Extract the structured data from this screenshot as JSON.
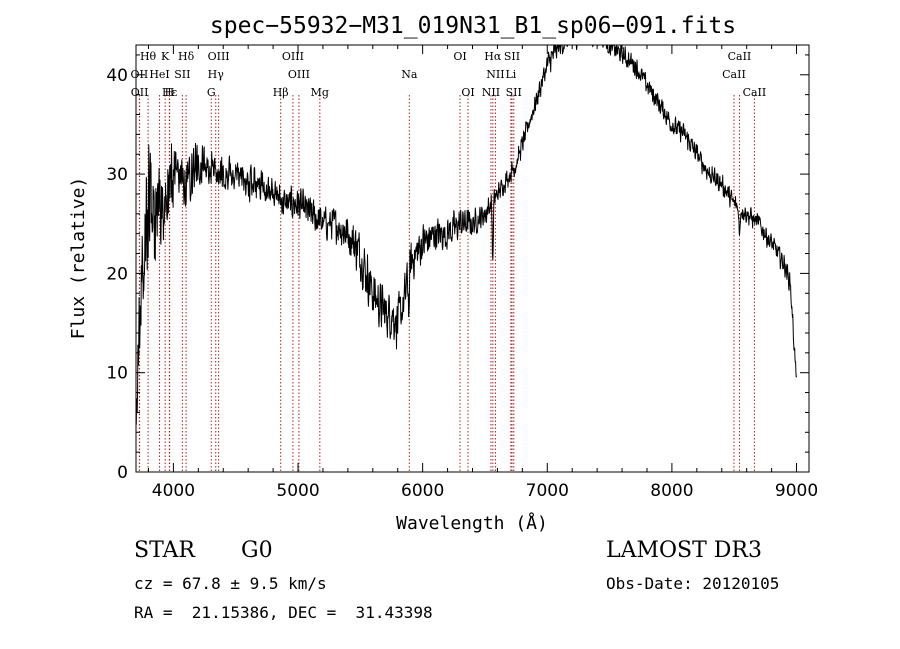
{
  "chart_data": {
    "type": "line",
    "title": "spec−55932−M31_019N31_B1_sp06−091.fits",
    "xlabel": "Wavelength (Å)",
    "ylabel": "Flux (relative)",
    "xlim": [
      3700,
      9100
    ],
    "ylim": [
      0,
      43
    ],
    "x_ticks": [
      4000,
      5000,
      6000,
      7000,
      8000,
      9000
    ],
    "y_ticks": [
      0,
      10,
      20,
      30,
      40
    ],
    "x_minor_step": 200,
    "y_minor_step": 2,
    "grid": false,
    "line_color": "#000000",
    "marker_color": "#b22222",
    "spectrum": {
      "name": "flux",
      "noise_seed": 55932,
      "x": [
        3700,
        3720,
        3760,
        3800,
        3850,
        3900,
        3950,
        4000,
        4050,
        4100,
        4150,
        4200,
        4250,
        4300,
        4400,
        4500,
        4600,
        4700,
        4800,
        4900,
        5000,
        5100,
        5200,
        5300,
        5400,
        5500,
        5600,
        5700,
        5750,
        5800,
        5850,
        5900,
        6000,
        6100,
        6200,
        6300,
        6400,
        6500,
        6550,
        6600,
        6650,
        6700,
        6750,
        6800,
        6900,
        7000,
        7100,
        7200,
        7300,
        7400,
        7500,
        7600,
        7700,
        7800,
        7900,
        8000,
        8100,
        8200,
        8300,
        8400,
        8500,
        8600,
        8700,
        8800,
        8900,
        8950,
        9000
      ],
      "y": [
        6,
        14,
        22,
        26,
        24,
        27,
        29,
        30,
        30,
        29,
        30,
        31,
        31,
        31,
        30,
        30,
        29,
        29,
        28,
        27,
        27,
        26,
        25,
        25,
        24,
        22,
        18,
        16,
        16,
        15,
        17,
        21,
        23,
        24,
        24,
        25,
        25,
        26,
        27,
        28,
        29,
        30,
        31,
        33,
        37,
        41,
        43,
        44,
        44,
        44,
        43,
        42,
        41,
        39,
        37,
        35,
        34,
        32,
        30,
        29,
        27,
        26,
        25,
        23,
        21,
        19,
        9
      ],
      "noise_amplitude": [
        5,
        6,
        7,
        8,
        7,
        6,
        5,
        4,
        3,
        3,
        3,
        3,
        2.5,
        2.5,
        2,
        2,
        2,
        2,
        2,
        2,
        2,
        2,
        2,
        2,
        2.5,
        3,
        3,
        3,
        3,
        3,
        3,
        2.5,
        2.5,
        2,
        2,
        2,
        1.5,
        1.5,
        1.5,
        1.2,
        1.2,
        1.2,
        1.2,
        1.2,
        1.2,
        1.5,
        1.5,
        1.5,
        1.5,
        1.2,
        1.2,
        1.2,
        1.2,
        1.2,
        1.2,
        1.2,
        1.2,
        1.2,
        1.2,
        1.2,
        1.2,
        1.2,
        1.2,
        1.2,
        1.2,
        1.2,
        1
      ]
    },
    "absorption_features": [
      {
        "x": 5890,
        "depth": 4
      },
      {
        "x": 6563,
        "depth": 6
      },
      {
        "x": 8542,
        "depth": 3
      }
    ],
    "line_markers": [
      {
        "label": "Hθ",
        "x": 3797,
        "row": 0
      },
      {
        "label": "K",
        "x": 3934,
        "row": 0
      },
      {
        "label": "Hδ",
        "x": 4102,
        "row": 0
      },
      {
        "label": "OIII",
        "x": 4363,
        "row": 0
      },
      {
        "label": "OIII",
        "x": 4959,
        "row": 0
      },
      {
        "label": "OI",
        "x": 6300,
        "row": 0
      },
      {
        "label": "Hα",
        "x": 6563,
        "row": 0
      },
      {
        "label": "SII",
        "x": 6717,
        "row": 0
      },
      {
        "label": "CaII",
        "x": 8542,
        "row": 0
      },
      {
        "label": "OII",
        "x": 3727,
        "row": 1
      },
      {
        "label": "HeI",
        "x": 3889,
        "row": 1
      },
      {
        "label": "SII",
        "x": 4072,
        "row": 1
      },
      {
        "label": "Hγ",
        "x": 4340,
        "row": 1
      },
      {
        "label": "OIII",
        "x": 5007,
        "row": 1
      },
      {
        "label": "Na",
        "x": 5893,
        "row": 1
      },
      {
        "label": "NII",
        "x": 6584,
        "row": 1
      },
      {
        "label": "Li",
        "x": 6708,
        "row": 1
      },
      {
        "label": "CaII",
        "x": 8498,
        "row": 1
      },
      {
        "label": "OII",
        "x": 3729,
        "row": 2
      },
      {
        "label": "Hε",
        "x": 3970,
        "row": 2
      },
      {
        "label": "H",
        "x": 3968,
        "row": 2
      },
      {
        "label": "G",
        "x": 4304,
        "row": 2
      },
      {
        "label": "Hβ",
        "x": 4861,
        "row": 2
      },
      {
        "label": "Mg",
        "x": 5175,
        "row": 2
      },
      {
        "label": "OI",
        "x": 6364,
        "row": 2
      },
      {
        "label": "NII",
        "x": 6548,
        "row": 2
      },
      {
        "label": "SII",
        "x": 6731,
        "row": 2
      },
      {
        "label": "CaII",
        "x": 8662,
        "row": 2
      }
    ]
  },
  "info": {
    "object_class": "STAR",
    "subclass": "G0",
    "survey": "LAMOST DR3",
    "redshift": "cz = 67.8 ± 9.5 km/s",
    "obs_date": "Obs-Date: 20120105",
    "coordinates": "RA =  21.15386, DEC =  31.43398"
  }
}
